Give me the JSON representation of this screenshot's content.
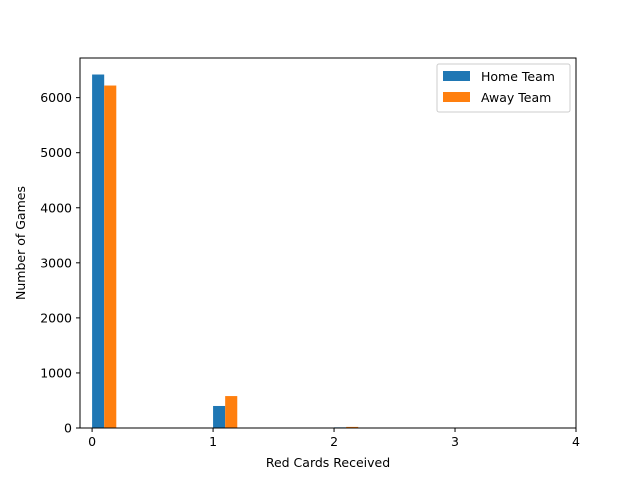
{
  "chart_data": {
    "type": "bar",
    "xlabel": "Red Cards Received",
    "ylabel": "Number of Games",
    "xlim": [
      -0.1,
      4.0
    ],
    "ylim": [
      0,
      6720
    ],
    "xticks": [
      0,
      1,
      2,
      3,
      4
    ],
    "xtick_labels": [
      "0",
      "1",
      "2",
      "3",
      "4"
    ],
    "yticks": [
      0,
      1000,
      2000,
      3000,
      4000,
      5000,
      6000
    ],
    "ytick_labels": [
      "0",
      "1000",
      "2000",
      "3000",
      "4000",
      "5000",
      "6000"
    ],
    "grid": false,
    "legend_position": "top-right",
    "series": [
      {
        "name": "Home Team",
        "color": "#1f77b4",
        "x": [
          0,
          1,
          2
        ],
        "values": [
          6420,
          400,
          12
        ]
      },
      {
        "name": "Away Team",
        "color": "#ff7f0e",
        "x": [
          0,
          1,
          2
        ],
        "values": [
          6220,
          580,
          20
        ]
      }
    ]
  }
}
